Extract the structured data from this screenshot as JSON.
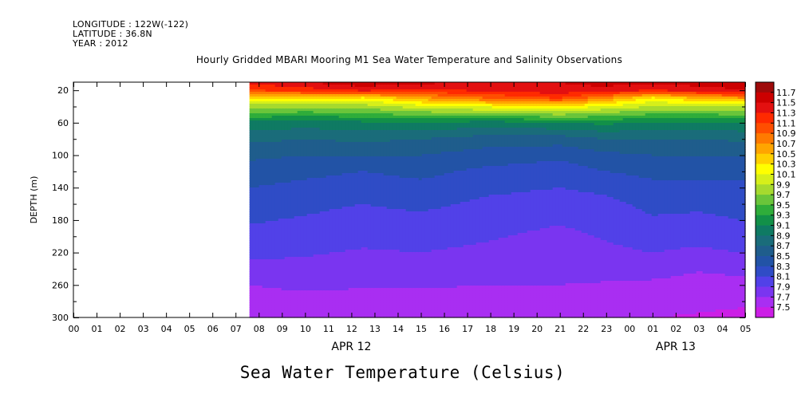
{
  "header": {
    "longitude": "LONGITUDE : 122W(-122)",
    "latitude": "LATITUDE : 36.8N",
    "year": "YEAR : 2012"
  },
  "title": "Hourly Gridded MBARI Mooring M1 Sea Water Temperature and Salinity Observations",
  "bottom_title": "Sea Water Temperature (Celsius)",
  "chart_data": {
    "type": "heatmap",
    "title": "Hourly Gridded MBARI Mooring M1 Sea Water Temperature and Salinity Observations",
    "xlabel": "",
    "ylabel": "DEPTH (m)",
    "x_tick_labels": [
      "00",
      "01",
      "02",
      "03",
      "04",
      "05",
      "06",
      "07",
      "08",
      "09",
      "10",
      "11",
      "12",
      "13",
      "14",
      "15",
      "16",
      "17",
      "18",
      "19",
      "20",
      "21",
      "22",
      "23",
      "00",
      "01",
      "02",
      "03",
      "04",
      "05"
    ],
    "x_date_labels": [
      {
        "label": "APR 12",
        "hour_index": 12
      },
      {
        "label": "APR 13",
        "hour_index": 26
      }
    ],
    "y_tick_labels": [
      "20",
      "60",
      "100",
      "140",
      "180",
      "220",
      "260",
      "300"
    ],
    "ylim": [
      10,
      300
    ],
    "y_inverted": true,
    "colorbar_levels": [
      "11.7",
      "11.5",
      "11.3",
      "11.1",
      "10.9",
      "10.7",
      "10.5",
      "10.3",
      "10.1",
      "9.9",
      "9.7",
      "9.5",
      "9.3",
      "9.1",
      "8.9",
      "8.7",
      "8.5",
      "8.3",
      "8.1",
      "7.9",
      "7.7",
      "7.5"
    ],
    "colorbar_colors": [
      "#9e0a0a",
      "#cc0000",
      "#e31010",
      "#ff2a00",
      "#ff4e00",
      "#ff7a00",
      "#ffa500",
      "#ffd000",
      "#ffff00",
      "#d6ef1a",
      "#a6da2e",
      "#6ac53a",
      "#2fad3a",
      "#129048",
      "#0f7a63",
      "#1a6c7a",
      "#1f5d8c",
      "#2253a6",
      "#2f4cc6",
      "#5141e8",
      "#7a35f0",
      "#a92ef2",
      "#cc1ee6"
    ],
    "data_start_hour": 7.6,
    "depths": [
      10,
      20,
      30,
      40,
      60,
      80,
      100,
      120,
      140,
      160,
      180,
      200,
      220,
      240,
      260,
      280,
      300
    ],
    "hours": [
      7.6,
      10,
      12.5,
      15,
      18,
      21,
      23,
      25,
      27,
      29.5
    ],
    "temperature": [
      [
        11.35,
        11.5,
        11.65,
        11.55,
        11.5,
        11.5,
        11.6,
        11.55,
        11.6,
        11.7
      ],
      [
        11.1,
        11.2,
        11.35,
        11.25,
        11.35,
        11.45,
        11.4,
        11.3,
        11.4,
        11.5
      ],
      [
        10.3,
        10.3,
        10.2,
        10.6,
        10.9,
        11.1,
        10.7,
        10.2,
        10.5,
        10.7
      ],
      [
        9.8,
        9.75,
        9.8,
        10.0,
        10.15,
        10.3,
        10.05,
        9.9,
        9.9,
        9.95
      ],
      [
        9.05,
        9.0,
        9.05,
        9.1,
        9.0,
        9.1,
        9.15,
        9.05,
        9.05,
        9.1
      ],
      [
        8.75,
        8.7,
        8.75,
        8.7,
        8.6,
        8.6,
        8.7,
        8.7,
        8.7,
        8.75
      ],
      [
        8.55,
        8.5,
        8.5,
        8.5,
        8.4,
        8.35,
        8.45,
        8.5,
        8.5,
        8.5
      ],
      [
        8.4,
        8.35,
        8.3,
        8.35,
        8.25,
        8.2,
        8.3,
        8.35,
        8.35,
        8.35
      ],
      [
        8.3,
        8.25,
        8.2,
        8.25,
        8.15,
        8.1,
        8.15,
        8.25,
        8.25,
        8.25
      ],
      [
        8.2,
        8.15,
        8.1,
        8.15,
        8.05,
        8.0,
        8.05,
        8.15,
        8.15,
        8.2
      ],
      [
        8.12,
        8.08,
        8.02,
        8.05,
        7.98,
        7.92,
        7.98,
        8.08,
        8.05,
        8.12
      ],
      [
        8.05,
        8.0,
        7.95,
        7.98,
        7.92,
        7.85,
        7.92,
        8.0,
        7.98,
        8.05
      ],
      [
        7.95,
        7.92,
        7.88,
        7.9,
        7.85,
        7.8,
        7.85,
        7.9,
        7.85,
        7.92
      ],
      [
        7.82,
        7.85,
        7.8,
        7.82,
        7.78,
        7.75,
        7.78,
        7.78,
        7.72,
        7.78
      ],
      [
        7.7,
        7.75,
        7.72,
        7.72,
        7.7,
        7.7,
        7.68,
        7.66,
        7.62,
        7.62
      ],
      [
        7.6,
        7.62,
        7.62,
        7.62,
        7.62,
        7.62,
        7.6,
        7.58,
        7.55,
        7.52
      ],
      [
        7.52,
        7.55,
        7.55,
        7.55,
        7.55,
        7.58,
        7.52,
        7.5,
        7.48,
        7.45
      ]
    ]
  }
}
